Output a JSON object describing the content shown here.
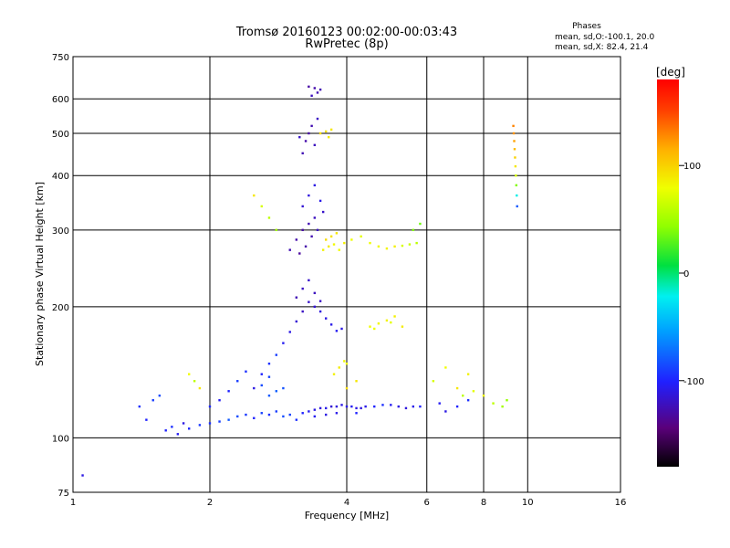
{
  "chart_data": {
    "type": "scatter",
    "title_line1": "Tromsø 20160123 00:02:00-00:03:43",
    "title_line2": "RwPretec (8p)",
    "stats_title": "Phases",
    "stats_line1": "mean, sd,O:-100.1, 20.0",
    "stats_line2": "mean, sd,X:  82.4, 21.4",
    "xlabel": "Frequency [MHz]",
    "ylabel": "Stationary phase Virtual Height [km]",
    "x_scale": "log",
    "y_scale": "log",
    "xlim": [
      1,
      16
    ],
    "ylim": [
      75,
      750
    ],
    "x_ticks": [
      1,
      2,
      4,
      6,
      8,
      10,
      16
    ],
    "x_tick_labels": [
      "1",
      "2",
      "4",
      "6",
      "8",
      "10",
      "16"
    ],
    "y_ticks": [
      75,
      100,
      200,
      300,
      400,
      500,
      600,
      750
    ],
    "y_tick_labels": [
      "75",
      "100",
      "200",
      "300",
      "400",
      "500",
      "600",
      "750"
    ],
    "grid": true,
    "colorbar": {
      "label": "[deg]",
      "range": [
        -180,
        180
      ],
      "ticks": [
        100,
        0,
        -100
      ],
      "tick_labels": [
        "100",
        "0",
        "-100"
      ]
    },
    "series": [
      {
        "points": [
          [
            1.6,
            104,
            -100
          ],
          [
            1.65,
            106,
            -95
          ],
          [
            1.7,
            102,
            -105
          ],
          [
            1.75,
            108,
            -110
          ],
          [
            1.8,
            105,
            -98
          ],
          [
            1.9,
            107,
            -92
          ],
          [
            2.0,
            108,
            -95
          ],
          [
            2.1,
            109,
            -90
          ],
          [
            2.2,
            110,
            -80
          ],
          [
            2.3,
            112,
            -85
          ],
          [
            2.4,
            113,
            -92
          ],
          [
            2.5,
            111,
            -100
          ],
          [
            2.6,
            114,
            -88
          ],
          [
            2.7,
            113,
            -95
          ],
          [
            2.8,
            115,
            -90
          ],
          [
            2.9,
            112,
            -85
          ],
          [
            3.0,
            113,
            -88
          ],
          [
            3.1,
            110,
            -95
          ],
          [
            3.2,
            114,
            -100
          ],
          [
            3.3,
            115,
            -105
          ],
          [
            3.4,
            116,
            -110
          ],
          [
            3.5,
            117,
            -112
          ],
          [
            3.6,
            117,
            -108
          ],
          [
            3.7,
            118,
            -115
          ],
          [
            3.8,
            118,
            -112
          ],
          [
            3.9,
            119,
            -110
          ],
          [
            4.0,
            118,
            -108
          ],
          [
            4.1,
            118,
            -105
          ],
          [
            4.2,
            117,
            -110
          ],
          [
            4.3,
            117,
            -112
          ],
          [
            4.4,
            118,
            -108
          ],
          [
            4.6,
            118,
            -100
          ],
          [
            4.8,
            119,
            -95
          ],
          [
            5.0,
            119,
            -105
          ],
          [
            5.2,
            118,
            -110
          ],
          [
            5.4,
            117,
            -112
          ],
          [
            5.6,
            118,
            -108
          ],
          [
            5.8,
            118,
            -100
          ],
          [
            3.4,
            112,
            -105
          ],
          [
            3.6,
            113,
            -110
          ],
          [
            3.8,
            114,
            -108
          ],
          [
            4.2,
            114,
            -100
          ],
          [
            2.5,
            130,
            -110
          ],
          [
            2.6,
            140,
            -100
          ],
          [
            2.7,
            148,
            -95
          ],
          [
            2.8,
            155,
            -90
          ],
          [
            2.9,
            165,
            -105
          ],
          [
            3.0,
            175,
            -110
          ],
          [
            3.1,
            185,
            -115
          ],
          [
            3.2,
            195,
            -120
          ],
          [
            3.3,
            205,
            -118
          ],
          [
            3.4,
            215,
            -122
          ],
          [
            3.1,
            210,
            -125
          ],
          [
            3.2,
            220,
            -120
          ],
          [
            3.3,
            230,
            -118
          ],
          [
            3.5,
            195,
            -112
          ],
          [
            3.6,
            188,
            -110
          ],
          [
            3.7,
            182,
            -108
          ],
          [
            3.8,
            176,
            -105
          ],
          [
            3.9,
            178,
            -110
          ],
          [
            3.4,
            200,
            -115
          ],
          [
            3.5,
            206,
            -120
          ],
          [
            2.3,
            135,
            -90
          ],
          [
            2.4,
            142,
            -95
          ],
          [
            2.2,
            128,
            -100
          ],
          [
            2.1,
            122,
            -105
          ],
          [
            2.0,
            118,
            -98
          ],
          [
            2.6,
            132,
            -85
          ],
          [
            2.7,
            125,
            -80
          ],
          [
            2.8,
            128,
            -78
          ],
          [
            2.9,
            130,
            -82
          ],
          [
            2.7,
            138,
            -88
          ],
          [
            3.0,
            270,
            -125
          ],
          [
            3.1,
            285,
            -128
          ],
          [
            3.2,
            300,
            -130
          ],
          [
            3.3,
            310,
            -125
          ],
          [
            3.4,
            320,
            -122
          ],
          [
            3.15,
            265,
            -132
          ],
          [
            3.25,
            275,
            -128
          ],
          [
            3.35,
            290,
            -126
          ],
          [
            3.45,
            300,
            -120
          ],
          [
            3.55,
            330,
            -118
          ],
          [
            3.2,
            340,
            -115
          ],
          [
            3.3,
            360,
            -112
          ],
          [
            3.4,
            380,
            -110
          ],
          [
            3.5,
            350,
            -108
          ],
          [
            3.2,
            450,
            -125
          ],
          [
            3.25,
            480,
            -128
          ],
          [
            3.3,
            500,
            -130
          ],
          [
            3.35,
            520,
            -126
          ],
          [
            3.4,
            470,
            -122
          ],
          [
            3.45,
            540,
            -120
          ],
          [
            3.15,
            490,
            -118
          ],
          [
            3.3,
            640,
            -130
          ],
          [
            3.4,
            635,
            -128
          ],
          [
            3.5,
            630,
            -125
          ],
          [
            3.35,
            610,
            -122
          ],
          [
            3.45,
            620,
            -126
          ],
          [
            1.4,
            118,
            -95
          ],
          [
            1.5,
            122,
            -90
          ],
          [
            1.55,
            125,
            -85
          ],
          [
            1.45,
            110,
            -100
          ],
          [
            1.05,
            82,
            -110
          ],
          [
            6.4,
            120,
            -105
          ],
          [
            6.6,
            115,
            -110
          ],
          [
            7.0,
            118,
            -100
          ],
          [
            7.4,
            122,
            -95
          ]
        ]
      },
      {
        "points": [
          [
            3.55,
            270,
            85
          ],
          [
            3.65,
            275,
            88
          ],
          [
            3.75,
            278,
            82
          ],
          [
            3.85,
            270,
            80
          ],
          [
            3.95,
            280,
            86
          ],
          [
            4.1,
            285,
            78
          ],
          [
            4.3,
            290,
            75
          ],
          [
            4.5,
            280,
            80
          ],
          [
            4.7,
            275,
            82
          ],
          [
            4.9,
            272,
            84
          ],
          [
            5.1,
            275,
            86
          ],
          [
            5.3,
            276,
            70
          ],
          [
            5.5,
            278,
            65
          ],
          [
            5.7,
            280,
            60
          ],
          [
            3.6,
            285,
            95
          ],
          [
            3.7,
            290,
            92
          ],
          [
            3.8,
            295,
            90
          ],
          [
            3.75,
            140,
            85
          ],
          [
            3.85,
            145,
            88
          ],
          [
            3.95,
            150,
            82
          ],
          [
            4.0,
            148,
            80
          ],
          [
            4.5,
            180,
            80
          ],
          [
            4.7,
            183,
            82
          ],
          [
            4.9,
            186,
            84
          ],
          [
            5.1,
            190,
            86
          ],
          [
            5.3,
            180,
            88
          ],
          [
            4.6,
            178,
            78
          ],
          [
            5.0,
            184,
            75
          ],
          [
            3.5,
            500,
            95
          ],
          [
            3.6,
            505,
            92
          ],
          [
            3.7,
            510,
            90
          ],
          [
            3.65,
            490,
            88
          ],
          [
            9.3,
            520,
            130
          ],
          [
            9.32,
            500,
            125
          ],
          [
            9.34,
            480,
            120
          ],
          [
            9.36,
            460,
            110
          ],
          [
            9.38,
            440,
            100
          ],
          [
            9.4,
            420,
            90
          ],
          [
            9.42,
            400,
            70
          ],
          [
            9.44,
            380,
            40
          ],
          [
            9.46,
            360,
            -20
          ],
          [
            9.48,
            340,
            -80
          ],
          [
            2.5,
            360,
            90
          ],
          [
            2.6,
            340,
            70
          ],
          [
            2.7,
            320,
            60
          ],
          [
            2.8,
            300,
            50
          ],
          [
            6.2,
            135,
            70
          ],
          [
            6.6,
            145,
            80
          ],
          [
            7.0,
            130,
            90
          ],
          [
            7.2,
            125,
            60
          ],
          [
            7.4,
            140,
            85
          ],
          [
            7.6,
            128,
            75
          ],
          [
            8.0,
            125,
            80
          ],
          [
            8.4,
            120,
            60
          ],
          [
            8.8,
            118,
            50
          ],
          [
            9.0,
            122,
            45
          ],
          [
            1.8,
            140,
            80
          ],
          [
            1.85,
            135,
            60
          ],
          [
            1.9,
            130,
            90
          ],
          [
            5.6,
            300,
            40
          ],
          [
            5.8,
            310,
            35
          ],
          [
            4.0,
            130,
            95
          ],
          [
            4.2,
            135,
            90
          ]
        ]
      }
    ]
  }
}
